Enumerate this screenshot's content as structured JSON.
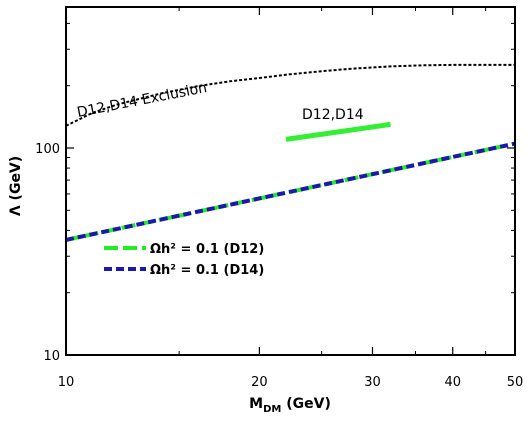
{
  "chart_data": {
    "type": "line",
    "xscale": "log",
    "yscale": "log",
    "xlim": [
      10,
      50
    ],
    "ylim": [
      10,
      480
    ],
    "xlabel_main": "M",
    "xlabel_sub": "DM",
    "xlabel_rest": " (GeV)",
    "ylabel": "Λ (GeV)",
    "x_ticks": [
      {
        "value": 10,
        "label": "10"
      },
      {
        "value": 20,
        "label": "20"
      },
      {
        "value": 30,
        "label": "30"
      },
      {
        "value": 40,
        "label": "40"
      },
      {
        "value": 50,
        "label": "50"
      }
    ],
    "x_minor_ticks": [
      15,
      25,
      35,
      45
    ],
    "y_ticks": [
      {
        "value": 10,
        "label": "10"
      },
      {
        "value": 100,
        "label": "100"
      }
    ],
    "y_minor_ticks": [
      20,
      30,
      40,
      50,
      60,
      70,
      80,
      90,
      200,
      300,
      400
    ],
    "grid": false,
    "legend_position": "lower-left",
    "series": [
      {
        "key": "relic_d12",
        "name": "Ωh² = 0.1 (D12)",
        "color": "#22ee22",
        "style": "dashed",
        "x": [
          10,
          50
        ],
        "y": [
          36,
          105
        ]
      },
      {
        "key": "relic_d14",
        "name": "Ωh² = 0.1 (D14)",
        "color": "#1a1aaa",
        "style": "dashed",
        "x": [
          10,
          50
        ],
        "y": [
          36,
          105
        ]
      },
      {
        "key": "exclusion",
        "color": "#000000",
        "style": "dotted",
        "x": [
          10,
          11,
          12,
          14,
          16,
          18,
          20,
          22,
          25,
          28,
          32,
          36,
          40,
          45,
          50
        ],
        "y": [
          128,
          148,
          162,
          183,
          199,
          210,
          218,
          226,
          235,
          242,
          248,
          251,
          252,
          252,
          252
        ]
      },
      {
        "key": "d12_d14",
        "color": "#33ee33",
        "style": "solid",
        "x": [
          22,
          32
        ],
        "y": [
          110,
          130
        ]
      }
    ],
    "annotations": [
      {
        "key": "exclusion",
        "text": "D12,D14 Exclusion"
      },
      {
        "key": "region",
        "text": "D12,D14"
      }
    ]
  }
}
